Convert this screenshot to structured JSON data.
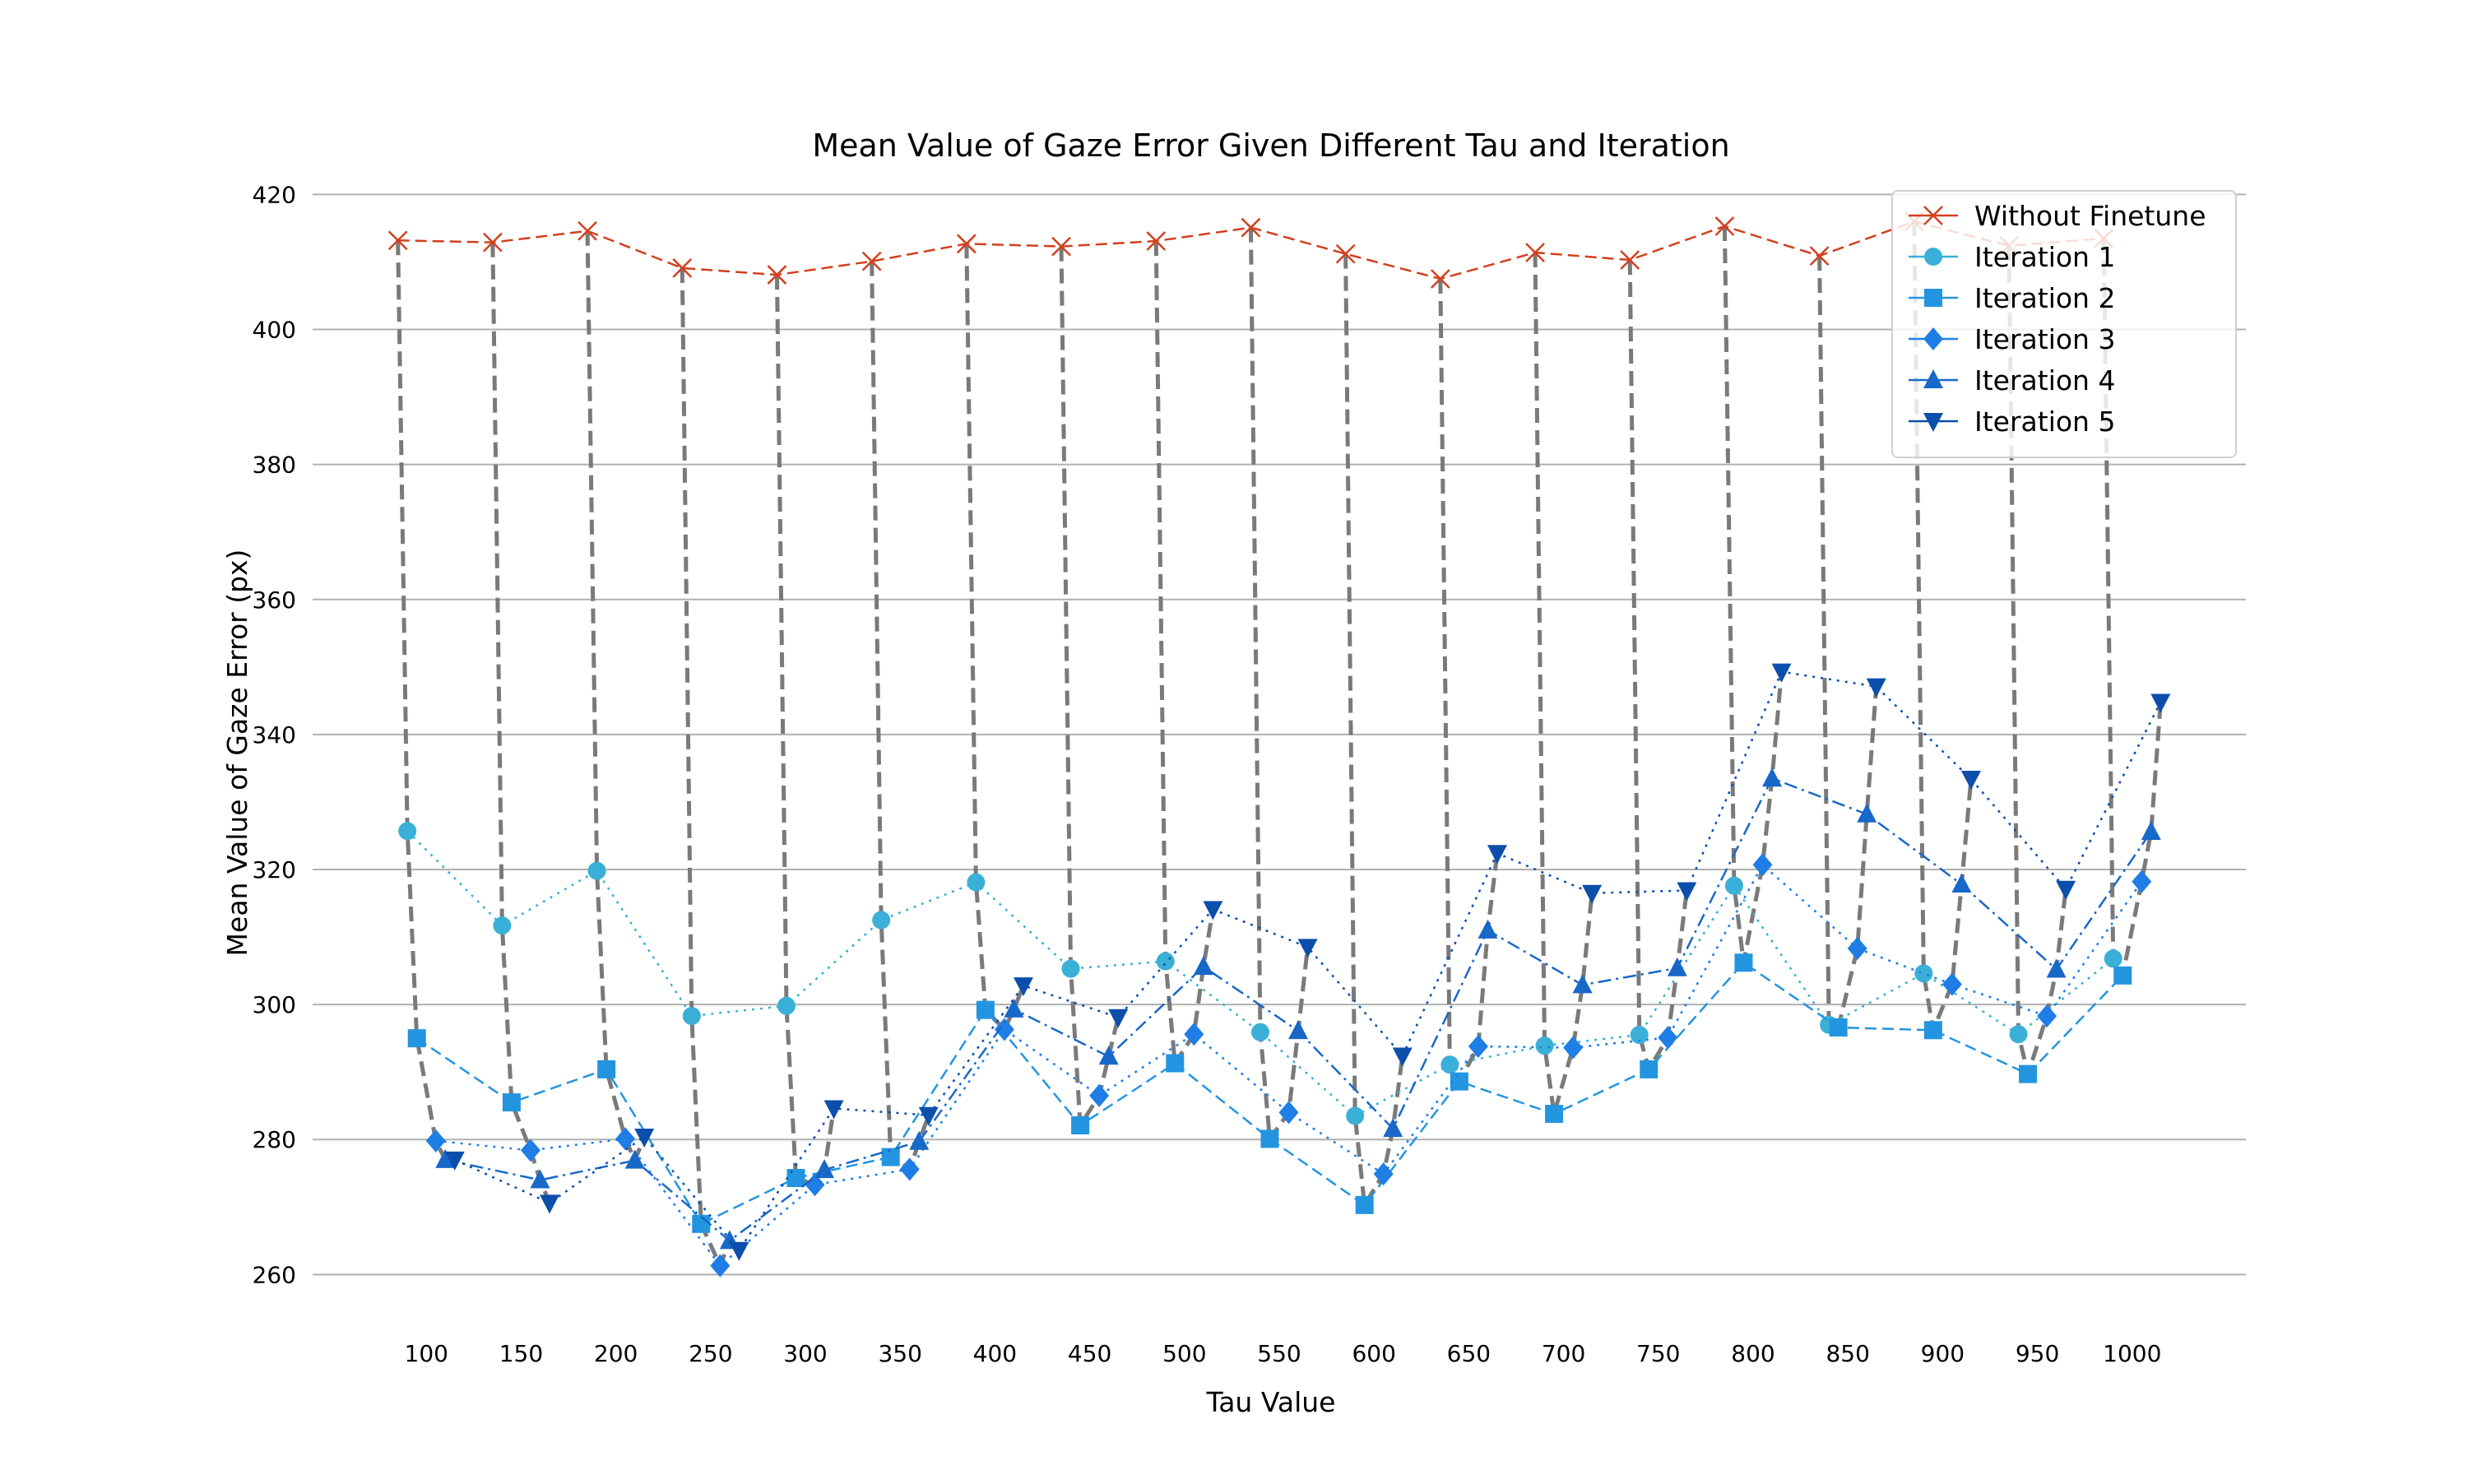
{
  "chart_data": {
    "type": "line",
    "title": "Mean Value of Gaze Error Given Different Tau and Iteration",
    "xlabel": "Tau Value",
    "ylabel": "Mean Value of Gaze Error (px)",
    "xlim": [
      40,
      1060
    ],
    "ylim": [
      252,
      422
    ],
    "x_ticks": [
      100,
      150,
      200,
      250,
      300,
      350,
      400,
      450,
      500,
      550,
      600,
      650,
      700,
      750,
      800,
      850,
      900,
      950,
      1000
    ],
    "y_ticks": [
      260,
      280,
      300,
      320,
      340,
      360,
      380,
      400,
      420
    ],
    "grid": "horizontal",
    "legend_position": "top-right",
    "connector_style": "grey dashed line linking each tau's results across iterations",
    "series": [
      {
        "name": "Without Finetune",
        "x_offset": -15,
        "color": "#d1401f",
        "marker": "x",
        "linestyle": "dashed",
        "values": [
          413.2,
          412.9,
          414.6,
          409.1,
          408.1,
          410.1,
          412.7,
          412.3,
          413.1,
          415.1,
          411.2,
          407.5,
          411.4,
          410.3,
          415.3,
          410.9,
          416.0,
          412.4,
          413.5
        ]
      },
      {
        "name": "Iteration 1",
        "x_offset": -10,
        "color": "#3ab0d8",
        "marker": "o",
        "linestyle": "dotted",
        "values": [
          325.7,
          311.7,
          319.8,
          298.3,
          299.8,
          312.5,
          318.1,
          305.3,
          306.4,
          295.9,
          283.5,
          291.1,
          293.9,
          295.5,
          317.6,
          297.0,
          304.6,
          295.6,
          306.8
        ]
      },
      {
        "name": "Iteration 2",
        "x_offset": -5,
        "color": "#2395e0",
        "marker": "s",
        "linestyle": "dashed",
        "values": [
          295.0,
          285.5,
          290.4,
          267.5,
          274.3,
          277.4,
          299.2,
          282.1,
          291.3,
          280.1,
          270.3,
          288.6,
          283.8,
          290.4,
          306.2,
          296.6,
          296.2,
          289.7,
          304.3
        ]
      },
      {
        "name": "Iteration 3",
        "x_offset": 5,
        "color": "#1f7ee6",
        "marker": "D",
        "linestyle": "dotted",
        "values": [
          279.8,
          278.4,
          280.1,
          261.3,
          273.3,
          275.6,
          296.3,
          286.5,
          295.6,
          284.0,
          274.9,
          293.8,
          293.6,
          295.1,
          320.7,
          308.3,
          303.0,
          298.3,
          318.2
        ]
      },
      {
        "name": "Iteration 4",
        "x_offset": 10,
        "color": "#1868c8",
        "marker": "^",
        "linestyle": "dashdot",
        "values": [
          277.0,
          274.0,
          276.9,
          265.0,
          275.5,
          279.7,
          299.3,
          292.3,
          305.6,
          296.1,
          281.6,
          311.0,
          302.9,
          305.4,
          333.5,
          328.2,
          317.8,
          305.2,
          325.6
        ]
      },
      {
        "name": "Iteration 5",
        "x_offset": 15,
        "color": "#0c4faa",
        "marker": "v",
        "linestyle": "dotted",
        "values": [
          277.0,
          270.6,
          280.4,
          263.6,
          284.6,
          283.6,
          302.8,
          298.1,
          314.1,
          308.5,
          292.4,
          322.4,
          316.5,
          316.9,
          349.3,
          347.1,
          333.4,
          317.1,
          344.8
        ]
      }
    ]
  }
}
